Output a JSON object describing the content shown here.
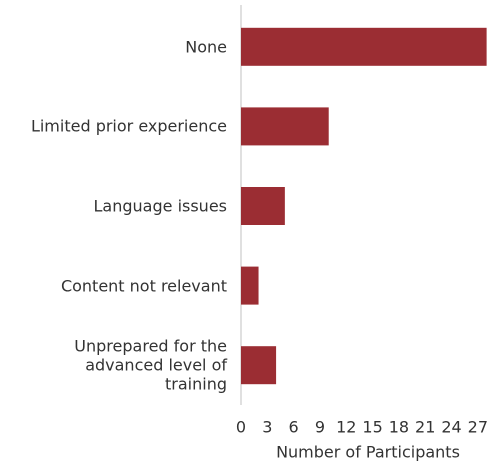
{
  "chart_data": {
    "type": "barh",
    "categories": [
      "None",
      "Limited prior experience",
      "Language issues",
      "Content not relevant",
      "Unprepared for the\nadvanced level of\ntraining"
    ],
    "values": [
      28,
      10,
      5,
      2,
      4
    ],
    "color": "#9b2d33",
    "x_label": "Number of Participants",
    "xlim": [
      0,
      28.5
    ],
    "xticks": [
      0,
      3,
      6,
      9,
      12,
      15,
      18,
      21,
      24,
      27
    ]
  }
}
